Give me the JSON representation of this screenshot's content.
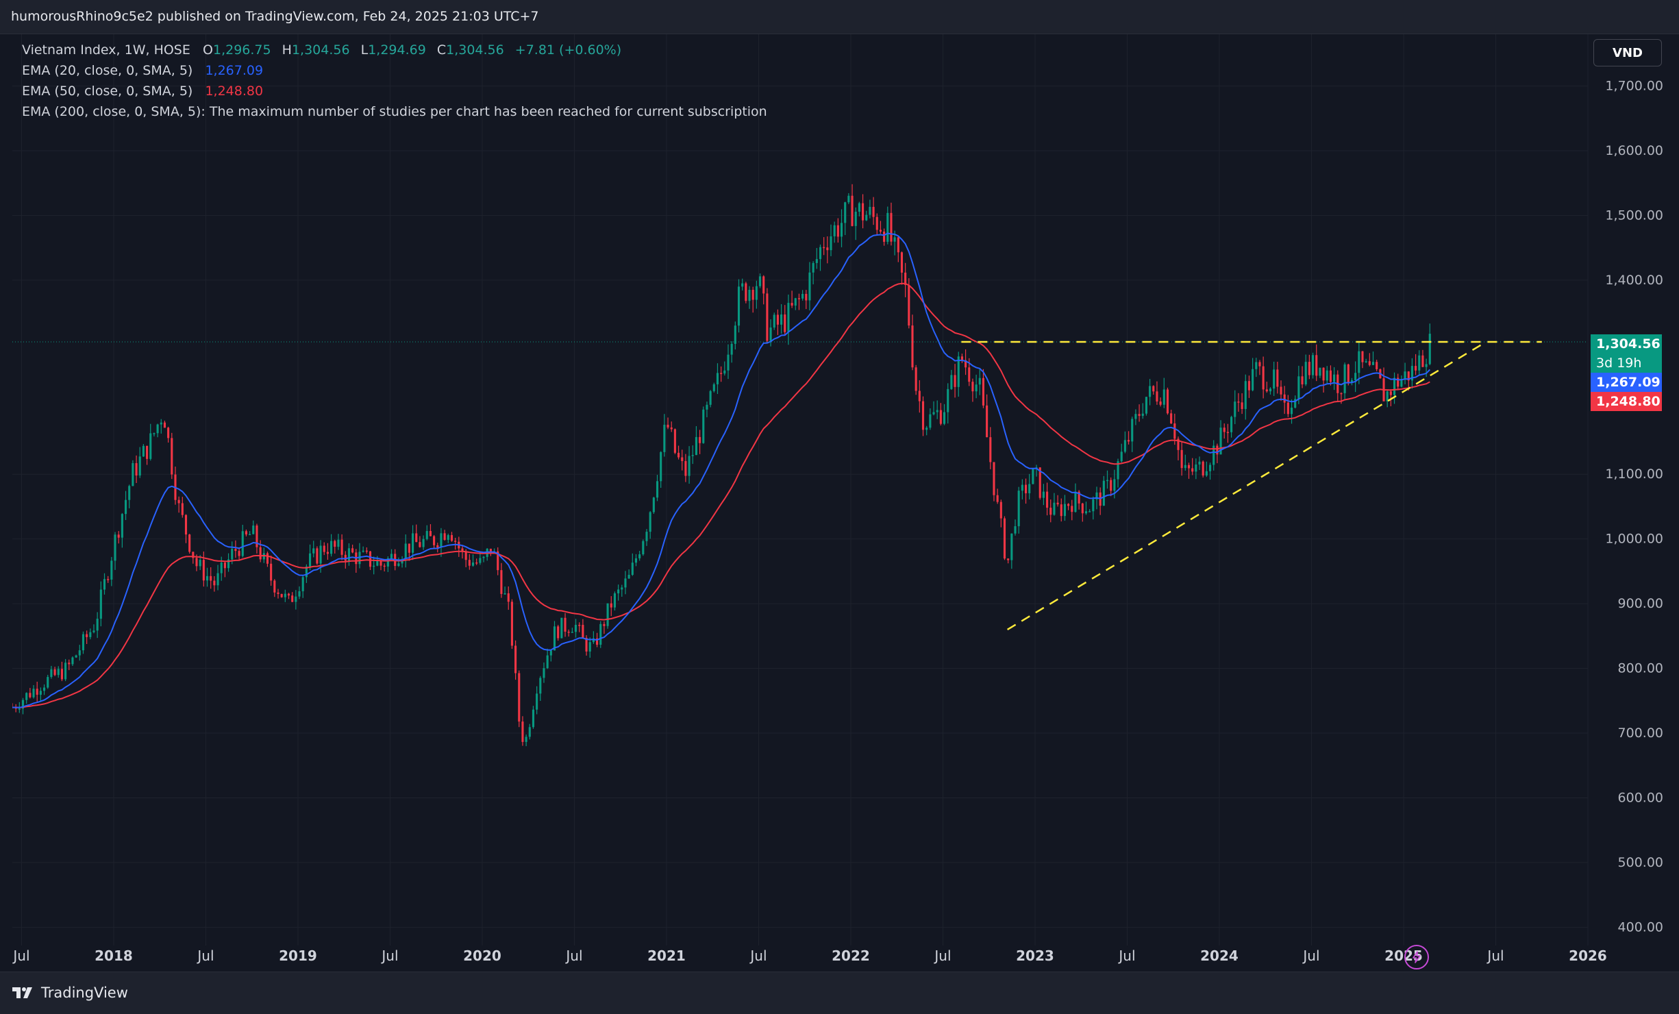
{
  "header": {
    "publisher_line": "humorousRhino9c5e2 published on TradingView.com, Feb 24, 2025 21:03 UTC+7"
  },
  "legend": {
    "symbol": "Vietnam Index, 1W, HOSE",
    "ohlc": {
      "o_label": "O",
      "o": "1,296.75",
      "h_label": "H",
      "h": "1,304.56",
      "l_label": "L",
      "l": "1,294.69",
      "c_label": "C",
      "c": "1,304.56",
      "change": "+7.81 (+0.60%)"
    },
    "ema20": {
      "label": "EMA (20, close, 0, SMA, 5)",
      "value": "1,267.09",
      "color": "#2962ff"
    },
    "ema50": {
      "label": "EMA (50, close, 0, SMA, 5)",
      "value": "1,248.80",
      "color": "#f23645"
    },
    "ema200": {
      "label": "EMA (200, close, 0, SMA, 5): The maximum number of studies per chart has been reached for current subscription"
    }
  },
  "currency": "VND",
  "price_tags": {
    "last": "1,304.56",
    "countdown": "3d 19h",
    "ema20": "1,267.09",
    "ema50": "1,248.80",
    "last_color": "#089981",
    "ema20_color": "#2962ff",
    "ema50_color": "#f23645"
  },
  "branding": {
    "name": "TradingView"
  },
  "icons": {
    "logo": "tradingview-logo-icon",
    "bolt": "lightning-bolt-icon"
  },
  "colors": {
    "up": "#089981",
    "down": "#f23645",
    "trendline": "#ffeb3b",
    "grid": "#1e222d"
  },
  "chart_data": {
    "type": "candlestick",
    "title": "Vietnam Index, 1W, HOSE",
    "interval": "1W",
    "ylim": [
      340,
      1780
    ],
    "y_ticks": [
      "400.00",
      "500.00",
      "600.00",
      "700.00",
      "800.00",
      "900.00",
      "1,000.00",
      "1,100.00",
      "1,400.00",
      "1,500.00",
      "1,600.00",
      "1,700.00"
    ],
    "x_ticks": [
      "Jul",
      "2018",
      "Jul",
      "2019",
      "Jul",
      "2020",
      "Jul",
      "2021",
      "Jul",
      "2022",
      "Jul",
      "2023",
      "Jul",
      "2024",
      "Jul",
      "2025",
      "Jul",
      "2026"
    ],
    "x_tick_dates": [
      2017.5,
      2018.0,
      2018.5,
      2019.0,
      2019.5,
      2020.0,
      2020.5,
      2021.0,
      2021.5,
      2022.0,
      2022.5,
      2023.0,
      2023.5,
      2024.0,
      2024.5,
      2025.0,
      2025.5,
      2026.0
    ],
    "xlim": [
      2017.45,
      2026.0
    ],
    "price_path": [
      [
        2017.45,
        740
      ],
      [
        2017.6,
        775
      ],
      [
        2017.75,
        800
      ],
      [
        2017.9,
        870
      ],
      [
        2018.0,
        990
      ],
      [
        2018.1,
        1100
      ],
      [
        2018.2,
        1150
      ],
      [
        2018.27,
        1200
      ],
      [
        2018.35,
        1050
      ],
      [
        2018.45,
        960
      ],
      [
        2018.55,
        930
      ],
      [
        2018.65,
        980
      ],
      [
        2018.75,
        1010
      ],
      [
        2018.85,
        940
      ],
      [
        2018.95,
        900
      ],
      [
        2019.05,
        960
      ],
      [
        2019.15,
        990
      ],
      [
        2019.3,
        975
      ],
      [
        2019.45,
        960
      ],
      [
        2019.6,
        990
      ],
      [
        2019.75,
        1000
      ],
      [
        2019.82,
        1020
      ],
      [
        2019.9,
        970
      ],
      [
        2020.0,
        960
      ],
      [
        2020.05,
        990
      ],
      [
        2020.15,
        880
      ],
      [
        2020.2,
        720
      ],
      [
        2020.23,
        680
      ],
      [
        2020.3,
        780
      ],
      [
        2020.4,
        860
      ],
      [
        2020.5,
        870
      ],
      [
        2020.55,
        840
      ],
      [
        2020.6,
        830
      ],
      [
        2020.7,
        900
      ],
      [
        2020.8,
        940
      ],
      [
        2020.9,
        1030
      ],
      [
        2021.0,
        1180
      ],
      [
        2021.05,
        1130
      ],
      [
        2021.1,
        1100
      ],
      [
        2021.2,
        1180
      ],
      [
        2021.3,
        1260
      ],
      [
        2021.4,
        1380
      ],
      [
        2021.5,
        1400
      ],
      [
        2021.55,
        1320
      ],
      [
        2021.65,
        1340
      ],
      [
        2021.75,
        1380
      ],
      [
        2021.85,
        1460
      ],
      [
        2021.95,
        1490
      ],
      [
        2022.0,
        1510
      ],
      [
        2022.1,
        1500
      ],
      [
        2022.2,
        1480
      ],
      [
        2022.3,
        1380
      ],
      [
        2022.35,
        1240
      ],
      [
        2022.4,
        1180
      ],
      [
        2022.5,
        1200
      ],
      [
        2022.6,
        1280
      ],
      [
        2022.7,
        1230
      ],
      [
        2022.8,
        1040
      ],
      [
        2022.85,
        960
      ],
      [
        2022.9,
        1050
      ],
      [
        2022.95,
        1080
      ],
      [
        2023.0,
        1100
      ],
      [
        2023.05,
        1060
      ],
      [
        2023.1,
        1040
      ],
      [
        2023.2,
        1060
      ],
      [
        2023.3,
        1050
      ],
      [
        2023.4,
        1080
      ],
      [
        2023.5,
        1150
      ],
      [
        2023.6,
        1220
      ],
      [
        2023.7,
        1230
      ],
      [
        2023.75,
        1180
      ],
      [
        2023.8,
        1100
      ],
      [
        2023.9,
        1110
      ],
      [
        2024.0,
        1150
      ],
      [
        2024.1,
        1210
      ],
      [
        2024.2,
        1260
      ],
      [
        2024.3,
        1240
      ],
      [
        2024.35,
        1190
      ],
      [
        2024.45,
        1260
      ],
      [
        2024.55,
        1270
      ],
      [
        2024.65,
        1240
      ],
      [
        2024.75,
        1270
      ],
      [
        2024.85,
        1250
      ],
      [
        2024.9,
        1220
      ],
      [
        2024.95,
        1240
      ],
      [
        2025.0,
        1250
      ],
      [
        2025.05,
        1260
      ],
      [
        2025.12,
        1290
      ],
      [
        2025.15,
        1304.56
      ]
    ],
    "series": [
      {
        "name": "EMA (20, close, 0, SMA, 5)",
        "last": 1267.09
      },
      {
        "name": "EMA (50, close, 0, SMA, 5)",
        "last": 1248.8
      }
    ],
    "annotations": [
      {
        "type": "horizontal-dashed",
        "price": 1304.56,
        "from": 2022.6,
        "to": 2025.75
      },
      {
        "type": "trend-dashed",
        "from": [
          2022.85,
          860
        ],
        "to": [
          2025.45,
          1305
        ]
      }
    ]
  }
}
